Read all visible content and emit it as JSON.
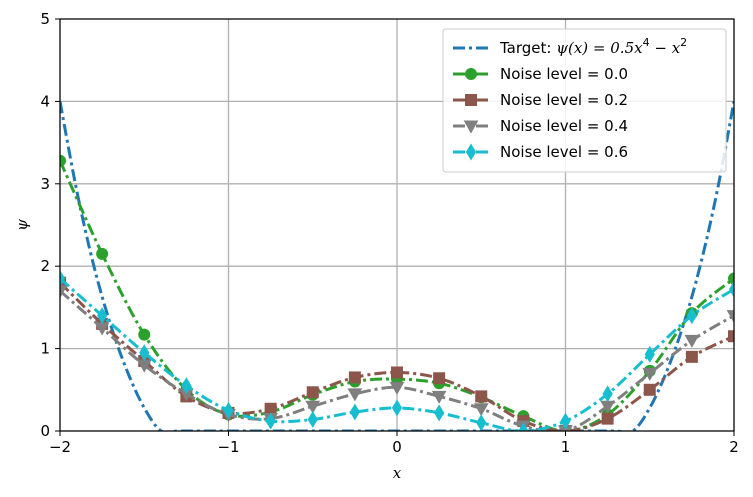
{
  "chart_data": {
    "type": "line",
    "xlabel": "x",
    "ylabel": "ψ",
    "xlim": [
      -2,
      2
    ],
    "ylim": [
      0,
      5
    ],
    "xticks": [
      -2,
      -1,
      0,
      1,
      2
    ],
    "xtick_labels": [
      "−2",
      "−1",
      "0",
      "1",
      "2"
    ],
    "yticks": [
      0,
      1,
      2,
      3,
      4,
      5
    ],
    "ytick_labels": [
      "0",
      "1",
      "2",
      "3",
      "4",
      "5"
    ],
    "grid": true,
    "legend_position": "top-right",
    "series": [
      {
        "name": "Target: ψ(x) = 0.5x⁴ − x²",
        "color": "#1f77b4",
        "marker": "none",
        "x": [
          -2.0,
          -1.9,
          -1.8,
          -1.7,
          -1.6,
          -1.5,
          -1.4,
          -1.3,
          -1.2,
          -1.1,
          -1.0,
          -0.9,
          -0.8,
          -0.7,
          -0.6,
          -0.5,
          -0.4,
          -0.3,
          -0.2,
          -0.1,
          0.0,
          0.1,
          0.2,
          0.3,
          0.4,
          0.5,
          0.6,
          0.7,
          0.8,
          0.9,
          1.0,
          1.1,
          1.2,
          1.3,
          1.4,
          1.5,
          1.6,
          1.7,
          1.8,
          1.9,
          2.0
        ],
        "y": [
          4.0,
          2.91,
          2.01,
          1.29,
          0.72,
          0.28,
          0.0,
          0.0,
          0.0,
          0.0,
          0.0,
          0.0,
          0.0,
          0.0,
          0.0,
          0.0,
          0.0,
          0.0,
          0.0,
          0.0,
          0.0,
          0.0,
          0.0,
          0.0,
          0.0,
          0.0,
          0.0,
          0.0,
          0.0,
          0.0,
          0.0,
          0.0,
          0.0,
          0.0,
          0.0,
          0.28,
          0.72,
          1.29,
          2.01,
          2.91,
          4.0
        ]
      },
      {
        "name": "Noise level = 0.0",
        "color": "#2ca02c",
        "marker": "circle",
        "x": [
          -2.0,
          -1.75,
          -1.5,
          -1.25,
          -1.0,
          -0.75,
          -0.5,
          -0.25,
          0.0,
          0.25,
          0.5,
          0.75,
          1.0,
          1.25,
          1.5,
          1.75,
          2.0
        ],
        "y": [
          3.28,
          2.15,
          1.17,
          0.5,
          0.2,
          0.23,
          0.44,
          0.6,
          0.63,
          0.58,
          0.41,
          0.18,
          0.0,
          0.2,
          0.73,
          1.43,
          1.85
        ]
      },
      {
        "name": "Noise level = 0.2",
        "color": "#8c564b",
        "marker": "square",
        "x": [
          -2.0,
          -1.75,
          -1.5,
          -1.25,
          -1.0,
          -0.75,
          -0.5,
          -0.25,
          0.0,
          0.25,
          0.5,
          0.75,
          1.0,
          1.25,
          1.5,
          1.75,
          2.0
        ],
        "y": [
          1.8,
          1.3,
          0.85,
          0.42,
          0.22,
          0.27,
          0.47,
          0.65,
          0.71,
          0.64,
          0.42,
          0.12,
          0.0,
          0.15,
          0.5,
          0.9,
          1.15
        ]
      },
      {
        "name": "Noise level = 0.4",
        "color": "#7f7f7f",
        "marker": "triangle-down",
        "x": [
          -2.0,
          -1.75,
          -1.5,
          -1.25,
          -1.0,
          -0.75,
          -0.5,
          -0.25,
          0.0,
          0.25,
          0.5,
          0.75,
          1.0,
          1.25,
          1.5,
          1.75,
          2.0
        ],
        "y": [
          1.7,
          1.25,
          0.8,
          0.45,
          0.2,
          0.15,
          0.3,
          0.45,
          0.53,
          0.42,
          0.27,
          0.06,
          0.0,
          0.3,
          0.7,
          1.1,
          1.4
        ]
      },
      {
        "name": "Noise level = 0.6",
        "color": "#17becf",
        "marker": "diamond",
        "x": [
          -2.0,
          -1.75,
          -1.5,
          -1.25,
          -1.0,
          -0.75,
          -0.5,
          -0.25,
          0.0,
          0.25,
          0.5,
          0.75,
          1.0,
          1.25,
          1.5,
          1.75,
          2.0
        ],
        "y": [
          1.85,
          1.4,
          0.95,
          0.55,
          0.25,
          0.12,
          0.14,
          0.23,
          0.28,
          0.22,
          0.1,
          0.0,
          0.12,
          0.45,
          0.93,
          1.4,
          1.72
        ]
      }
    ],
    "legend_entries": [
      {
        "prefix": "Target: ",
        "formula": "ψ(x) = 0.5x",
        "exp1": "4",
        "mid": " − x",
        "exp2": "2"
      },
      {
        "text": "Noise level  = 0.0"
      },
      {
        "text": "Noise level  = 0.2"
      },
      {
        "text": "Noise level  = 0.4"
      },
      {
        "text": "Noise level  = 0.6"
      }
    ]
  }
}
